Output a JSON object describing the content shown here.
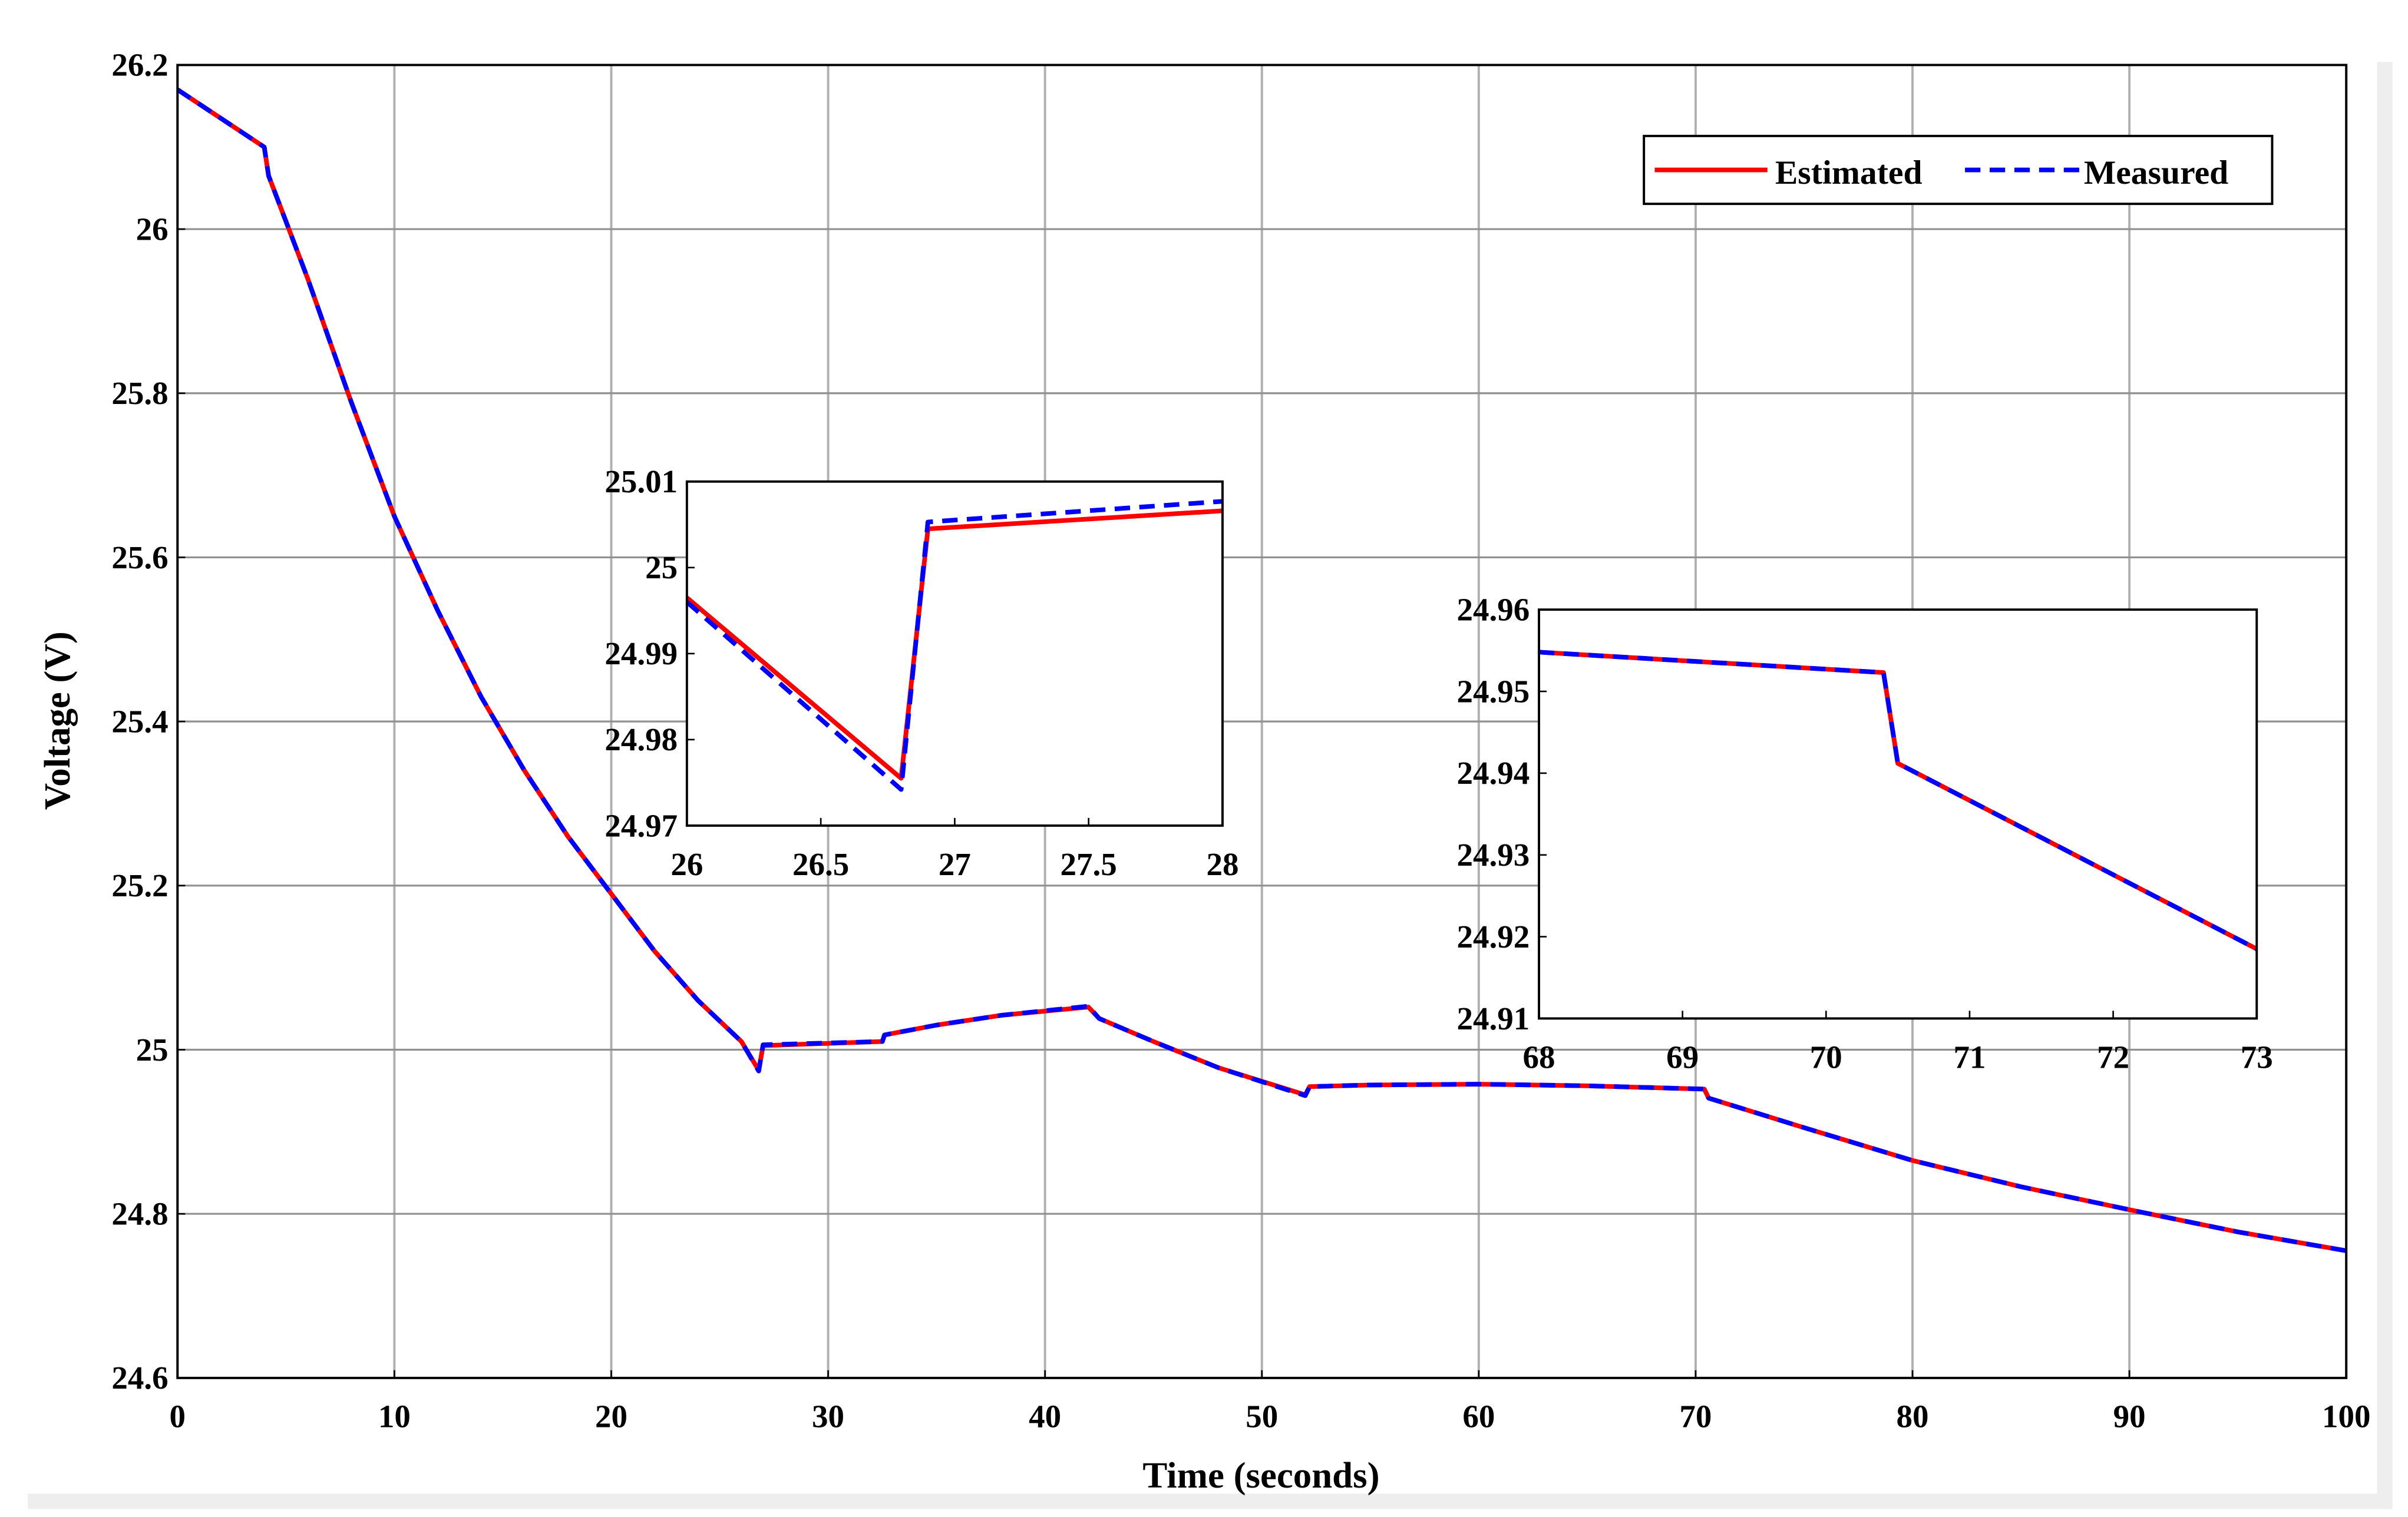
{
  "chart_data": [
    {
      "type": "line",
      "title": "",
      "xlabel": "Time (seconds)",
      "ylabel": "Voltage (V)",
      "xlim": [
        0,
        100
      ],
      "ylim": [
        24.6,
        26.2
      ],
      "xticks": [
        "0",
        "10",
        "20",
        "30",
        "40",
        "50",
        "60",
        "70",
        "80",
        "90",
        "100"
      ],
      "yticks": [
        "24.6",
        "24.8",
        "25",
        "25.2",
        "25.4",
        "25.6",
        "25.8",
        "26",
        "26.2"
      ],
      "grid": true,
      "legend": "top-right",
      "series": [
        {
          "name": "Estimated",
          "color": "#ff0000",
          "style": "solid",
          "x": [
            0,
            4,
            4.2,
            6,
            8,
            10,
            12,
            14,
            16,
            18,
            20,
            22,
            24,
            26,
            26.8,
            27,
            32.5,
            32.6,
            35,
            38,
            42,
            42.5,
            45,
            48,
            52,
            52.2,
            55,
            60,
            65,
            70.4,
            70.6,
            75,
            80,
            85,
            90,
            95,
            100
          ],
          "y": [
            26.17,
            26.1,
            26.065,
            25.94,
            25.79,
            25.65,
            25.535,
            25.43,
            25.34,
            25.26,
            25.19,
            25.12,
            25.06,
            25.01,
            24.975,
            25.005,
            25.01,
            25.018,
            25.03,
            25.042,
            25.052,
            25.038,
            25.01,
            24.978,
            24.945,
            24.955,
            24.957,
            24.958,
            24.956,
            24.952,
            24.941,
            24.905,
            24.865,
            24.833,
            24.805,
            24.778,
            24.755
          ]
        },
        {
          "name": "Measured",
          "color": "#0000ff",
          "style": "dashed",
          "x": [
            0,
            4,
            4.2,
            6,
            8,
            10,
            12,
            14,
            16,
            18,
            20,
            22,
            24,
            26,
            26.8,
            27,
            32.5,
            32.6,
            35,
            38,
            42,
            42.5,
            45,
            48,
            52,
            52.2,
            55,
            60,
            65,
            70.4,
            70.6,
            75,
            80,
            85,
            90,
            95,
            100
          ],
          "y": [
            26.17,
            26.1,
            26.065,
            25.94,
            25.79,
            25.65,
            25.535,
            25.43,
            25.34,
            25.26,
            25.19,
            25.12,
            25.06,
            25.01,
            24.974,
            25.006,
            25.01,
            25.018,
            25.03,
            25.042,
            25.053,
            25.038,
            25.01,
            24.978,
            24.944,
            24.955,
            24.957,
            24.958,
            24.956,
            24.952,
            24.941,
            24.905,
            24.865,
            24.833,
            24.805,
            24.778,
            24.755
          ]
        }
      ]
    },
    {
      "type": "line",
      "title": "",
      "xlim": [
        26,
        28
      ],
      "ylim": [
        24.97,
        25.01
      ],
      "xticks": [
        "26",
        "26.5",
        "27",
        "27.5",
        "28"
      ],
      "yticks": [
        "24.97",
        "24.98",
        "24.99",
        "25",
        "25.01"
      ],
      "grid": false,
      "series": [
        {
          "name": "Estimated",
          "color": "#ff0000",
          "style": "solid",
          "x": [
            26,
            26.8,
            26.9,
            28
          ],
          "y": [
            24.9965,
            24.9755,
            25.0045,
            25.0066
          ]
        },
        {
          "name": "Measured",
          "color": "#0000ff",
          "style": "dashed",
          "x": [
            26,
            26.8,
            26.9,
            28
          ],
          "y": [
            24.996,
            24.9742,
            25.0053,
            25.0077
          ]
        }
      ]
    },
    {
      "type": "line",
      "title": "",
      "xlim": [
        68,
        73
      ],
      "ylim": [
        24.91,
        24.96
      ],
      "xticks": [
        "68",
        "69",
        "70",
        "71",
        "72",
        "73"
      ],
      "yticks": [
        "24.91",
        "24.92",
        "24.93",
        "24.94",
        "24.95",
        "24.96"
      ],
      "grid": false,
      "series": [
        {
          "name": "Estimated",
          "color": "#ff0000",
          "style": "solid",
          "x": [
            68,
            70.4,
            70.5,
            73
          ],
          "y": [
            24.9548,
            24.9523,
            24.9412,
            24.9185
          ]
        },
        {
          "name": "Measured",
          "color": "#0000ff",
          "style": "dashed",
          "x": [
            68,
            70.4,
            70.5,
            73
          ],
          "y": [
            24.9548,
            24.9523,
            24.9412,
            24.9185
          ]
        }
      ]
    }
  ],
  "legend": {
    "items": [
      "Estimated",
      "Measured"
    ]
  }
}
